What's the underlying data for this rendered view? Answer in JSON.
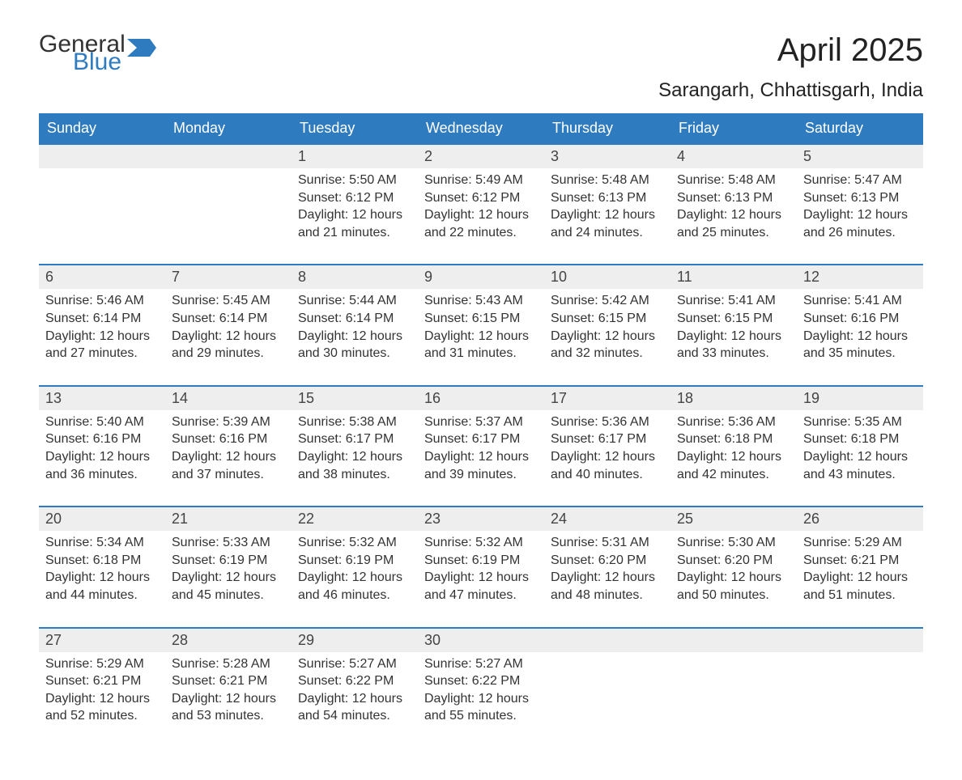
{
  "logo": {
    "text1": "General",
    "text2": "Blue",
    "accent_color": "#2f7bbf",
    "text_color": "#333333"
  },
  "title": "April 2025",
  "subtitle": "Sarangarh, Chhattisgarh, India",
  "colors": {
    "header_bg": "#2f7bbf",
    "header_text": "#ffffff",
    "daynum_bg": "#eeeeee",
    "body_bg": "#ffffff",
    "text": "#333333",
    "week_border": "#2f7bbf"
  },
  "font_sizes": {
    "title": 40,
    "subtitle": 24,
    "header": 18,
    "daynum": 18,
    "body": 16
  },
  "layout": {
    "columns": 7,
    "rows": 5
  },
  "weekdays": [
    "Sunday",
    "Monday",
    "Tuesday",
    "Wednesday",
    "Thursday",
    "Friday",
    "Saturday"
  ],
  "labels": {
    "sunrise": "Sunrise: ",
    "sunset": "Sunset: ",
    "daylight": "Daylight: "
  },
  "weeks": [
    [
      null,
      null,
      {
        "n": "1",
        "sunrise": "5:50 AM",
        "sunset": "6:12 PM",
        "daylight": "12 hours and 21 minutes."
      },
      {
        "n": "2",
        "sunrise": "5:49 AM",
        "sunset": "6:12 PM",
        "daylight": "12 hours and 22 minutes."
      },
      {
        "n": "3",
        "sunrise": "5:48 AM",
        "sunset": "6:13 PM",
        "daylight": "12 hours and 24 minutes."
      },
      {
        "n": "4",
        "sunrise": "5:48 AM",
        "sunset": "6:13 PM",
        "daylight": "12 hours and 25 minutes."
      },
      {
        "n": "5",
        "sunrise": "5:47 AM",
        "sunset": "6:13 PM",
        "daylight": "12 hours and 26 minutes."
      }
    ],
    [
      {
        "n": "6",
        "sunrise": "5:46 AM",
        "sunset": "6:14 PM",
        "daylight": "12 hours and 27 minutes."
      },
      {
        "n": "7",
        "sunrise": "5:45 AM",
        "sunset": "6:14 PM",
        "daylight": "12 hours and 29 minutes."
      },
      {
        "n": "8",
        "sunrise": "5:44 AM",
        "sunset": "6:14 PM",
        "daylight": "12 hours and 30 minutes."
      },
      {
        "n": "9",
        "sunrise": "5:43 AM",
        "sunset": "6:15 PM",
        "daylight": "12 hours and 31 minutes."
      },
      {
        "n": "10",
        "sunrise": "5:42 AM",
        "sunset": "6:15 PM",
        "daylight": "12 hours and 32 minutes."
      },
      {
        "n": "11",
        "sunrise": "5:41 AM",
        "sunset": "6:15 PM",
        "daylight": "12 hours and 33 minutes."
      },
      {
        "n": "12",
        "sunrise": "5:41 AM",
        "sunset": "6:16 PM",
        "daylight": "12 hours and 35 minutes."
      }
    ],
    [
      {
        "n": "13",
        "sunrise": "5:40 AM",
        "sunset": "6:16 PM",
        "daylight": "12 hours and 36 minutes."
      },
      {
        "n": "14",
        "sunrise": "5:39 AM",
        "sunset": "6:16 PM",
        "daylight": "12 hours and 37 minutes."
      },
      {
        "n": "15",
        "sunrise": "5:38 AM",
        "sunset": "6:17 PM",
        "daylight": "12 hours and 38 minutes."
      },
      {
        "n": "16",
        "sunrise": "5:37 AM",
        "sunset": "6:17 PM",
        "daylight": "12 hours and 39 minutes."
      },
      {
        "n": "17",
        "sunrise": "5:36 AM",
        "sunset": "6:17 PM",
        "daylight": "12 hours and 40 minutes."
      },
      {
        "n": "18",
        "sunrise": "5:36 AM",
        "sunset": "6:18 PM",
        "daylight": "12 hours and 42 minutes."
      },
      {
        "n": "19",
        "sunrise": "5:35 AM",
        "sunset": "6:18 PM",
        "daylight": "12 hours and 43 minutes."
      }
    ],
    [
      {
        "n": "20",
        "sunrise": "5:34 AM",
        "sunset": "6:18 PM",
        "daylight": "12 hours and 44 minutes."
      },
      {
        "n": "21",
        "sunrise": "5:33 AM",
        "sunset": "6:19 PM",
        "daylight": "12 hours and 45 minutes."
      },
      {
        "n": "22",
        "sunrise": "5:32 AM",
        "sunset": "6:19 PM",
        "daylight": "12 hours and 46 minutes."
      },
      {
        "n": "23",
        "sunrise": "5:32 AM",
        "sunset": "6:19 PM",
        "daylight": "12 hours and 47 minutes."
      },
      {
        "n": "24",
        "sunrise": "5:31 AM",
        "sunset": "6:20 PM",
        "daylight": "12 hours and 48 minutes."
      },
      {
        "n": "25",
        "sunrise": "5:30 AM",
        "sunset": "6:20 PM",
        "daylight": "12 hours and 50 minutes."
      },
      {
        "n": "26",
        "sunrise": "5:29 AM",
        "sunset": "6:21 PM",
        "daylight": "12 hours and 51 minutes."
      }
    ],
    [
      {
        "n": "27",
        "sunrise": "5:29 AM",
        "sunset": "6:21 PM",
        "daylight": "12 hours and 52 minutes."
      },
      {
        "n": "28",
        "sunrise": "5:28 AM",
        "sunset": "6:21 PM",
        "daylight": "12 hours and 53 minutes."
      },
      {
        "n": "29",
        "sunrise": "5:27 AM",
        "sunset": "6:22 PM",
        "daylight": "12 hours and 54 minutes."
      },
      {
        "n": "30",
        "sunrise": "5:27 AM",
        "sunset": "6:22 PM",
        "daylight": "12 hours and 55 minutes."
      },
      null,
      null,
      null
    ]
  ]
}
